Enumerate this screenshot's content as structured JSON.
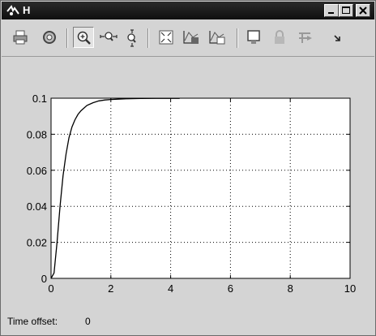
{
  "window": {
    "title": "H",
    "controls": {
      "minimize_icon": "minimize-icon",
      "maximize_icon": "maximize-icon",
      "close_icon": "close-icon"
    }
  },
  "toolbar": {
    "buttons": [
      {
        "name": "print",
        "icon": "print-icon"
      },
      {
        "name": "parameters",
        "icon": "gear-icon"
      },
      {
        "name": "zoom",
        "icon": "zoom-in-icon",
        "pressed": true
      },
      {
        "name": "zoom-x",
        "icon": "zoom-x-icon"
      },
      {
        "name": "zoom-y",
        "icon": "zoom-y-icon"
      },
      {
        "name": "autoscale",
        "icon": "autoscale-icon"
      },
      {
        "name": "save-axes",
        "icon": "save-axes-icon"
      },
      {
        "name": "restore-axes",
        "icon": "restore-axes-icon"
      },
      {
        "name": "floating-scope",
        "icon": "floating-scope-icon"
      },
      {
        "name": "lock",
        "icon": "lock-icon"
      },
      {
        "name": "signal-selection",
        "icon": "signal-selection-icon"
      },
      {
        "name": "more",
        "icon": "more-arrow-icon"
      }
    ]
  },
  "colors": {
    "title_bar": "#111111",
    "plot_background": "#ffffff",
    "line": "#000000",
    "window_bg": "#d4d4d4"
  },
  "chart_data": {
    "type": "line",
    "title": "",
    "xlabel": "",
    "ylabel": "",
    "xlim": [
      0,
      10
    ],
    "ylim": [
      0,
      0.1
    ],
    "xticks": [
      0,
      2,
      4,
      6,
      8,
      10
    ],
    "yticks": [
      0,
      0.02,
      0.04,
      0.06,
      0.08,
      0.1
    ],
    "xtick_labels": [
      "0",
      "2",
      "4",
      "6",
      "8",
      "10"
    ],
    "ytick_labels": [
      "0",
      "0.02",
      "0.04",
      "0.06",
      "0.08",
      "0.1"
    ],
    "grid": true,
    "series": [
      {
        "x": [
          0,
          0.1,
          0.2,
          0.3,
          0.4,
          0.5,
          0.6,
          0.7,
          0.8,
          0.9,
          1.0,
          1.2,
          1.4,
          1.6,
          1.8,
          2.0,
          2.5,
          3.0,
          3.5,
          4.0,
          4.3
        ],
        "values": [
          0,
          0.003,
          0.02,
          0.04,
          0.057,
          0.069,
          0.078,
          0.084,
          0.088,
          0.091,
          0.093,
          0.096,
          0.0975,
          0.0985,
          0.099,
          0.0993,
          0.0997,
          0.0998,
          0.0999,
          0.0999,
          0.0999
        ]
      }
    ]
  },
  "footer": {
    "time_offset_label": "Time offset:",
    "time_offset_value": "0"
  }
}
